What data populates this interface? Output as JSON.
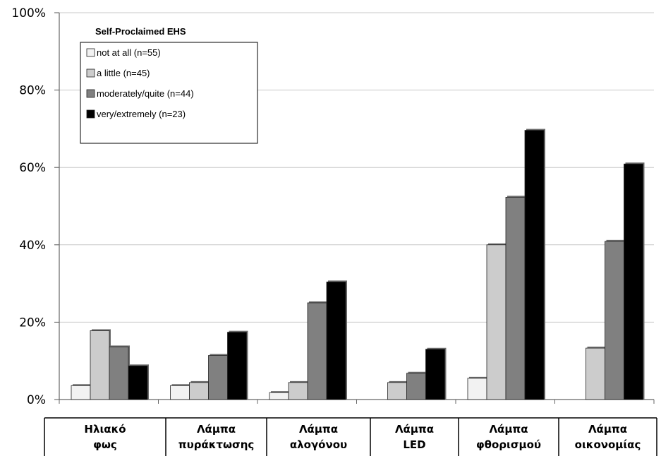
{
  "chart_data": {
    "type": "bar",
    "title": "",
    "xlabel": "",
    "ylabel": "",
    "ylim": [
      0,
      100
    ],
    "yticks": [
      "0%",
      "20%",
      "40%",
      "60%",
      "80%",
      "100%"
    ],
    "grid": true,
    "legend": {
      "title": "Self-Proclaimed EHS",
      "placement": "top-left"
    },
    "categories": [
      [
        "Ηλιακό",
        "φως"
      ],
      [
        "Λάμπα",
        "πυράκτωσης"
      ],
      [
        "Λάμπα",
        "αλογόνου"
      ],
      [
        "Λάμπα",
        "LED"
      ],
      [
        "Λάμπα",
        "φθορισμού"
      ],
      [
        "Λάμπα",
        "οικονομίας"
      ]
    ],
    "series": [
      {
        "name": "not at all (n=55)",
        "color": "#f2f2f2",
        "values": [
          3.6,
          3.6,
          1.8,
          0,
          5.5,
          0
        ]
      },
      {
        "name": "a little (n=45)",
        "color": "#cccccc",
        "values": [
          17.8,
          4.4,
          4.4,
          4.4,
          40.0,
          13.3
        ]
      },
      {
        "name": "moderately/quite (n=44)",
        "color": "#808080",
        "values": [
          13.6,
          11.4,
          25.0,
          6.8,
          52.3,
          40.9
        ]
      },
      {
        "name": "very/extremely (n=23)",
        "color": "#000000",
        "values": [
          8.7,
          17.4,
          30.4,
          13.0,
          69.6,
          60.9
        ]
      }
    ]
  }
}
